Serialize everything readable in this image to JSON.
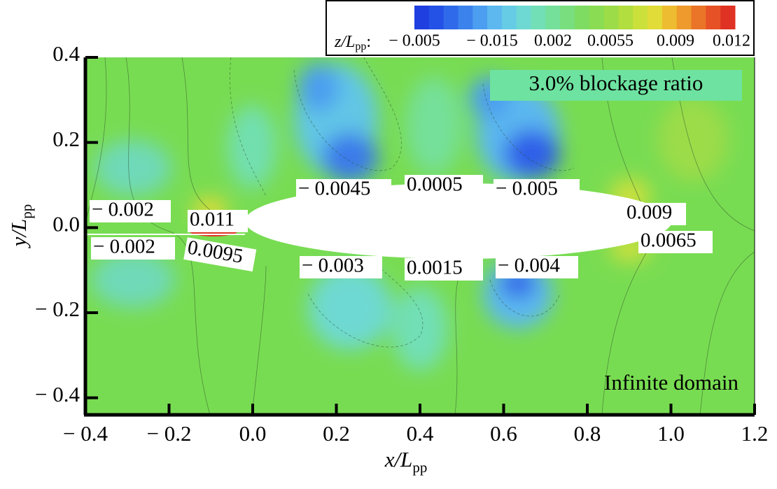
{
  "chart_data": {
    "type": "contour",
    "xlabel": "x/L",
    "xlabel_sub": "pp",
    "ylabel": "y/L",
    "ylabel_sub": "pp",
    "xlim": [
      -0.4,
      1.2
    ],
    "ylim": [
      -0.44,
      0.4
    ],
    "xticks": [
      {
        "value": -0.4,
        "label": "− 0.4"
      },
      {
        "value": -0.2,
        "label": "− 0.2"
      },
      {
        "value": 0,
        "label": "0.0"
      },
      0.2,
      0.4,
      0.6,
      0.8,
      {
        "value": 1,
        "label": "1.0"
      },
      1.2
    ],
    "yticks": [
      0.4,
      0.2,
      {
        "value": 0,
        "label": "0.0"
      },
      {
        "value": -0.2,
        "label": "− 0.2"
      },
      {
        "value": -0.4,
        "label": "− 0.4"
      }
    ],
    "colorbar": {
      "label": "z/L",
      "label_sub": "pp",
      "label_suffix": ":",
      "colors": [
        "#1f3fe0",
        "#2452e6",
        "#2f6aea",
        "#3c82ec",
        "#4c9ef0",
        "#5cb8ef",
        "#66cce6",
        "#6ed9d2",
        "#72dfb6",
        "#74e09a",
        "#78de7e",
        "#7edc62",
        "#8adc52",
        "#9cdc48",
        "#b2de40",
        "#cce03c",
        "#e2dc38",
        "#eebc30",
        "#ee9a2c",
        "#ea7428",
        "#e65226",
        "#e03224"
      ],
      "ticks": [
        {
          "value": -0.005,
          "label": "− 0.005"
        },
        {
          "value": -0.015,
          "label": "− 0.015"
        },
        0.002,
        0.0055,
        0.009,
        0.012
      ]
    },
    "annotations": [
      "3.0% blockage ratio",
      "Infinite domain"
    ],
    "contour_labels": [
      "− 0.002",
      "0.011",
      "− 0.002",
      "0.0095",
      "− 0.0045",
      "0.0005",
      "− 0.005",
      "0.009",
      "0.0065",
      "− 0.003",
      "0.0015",
      "− 0.004"
    ]
  }
}
